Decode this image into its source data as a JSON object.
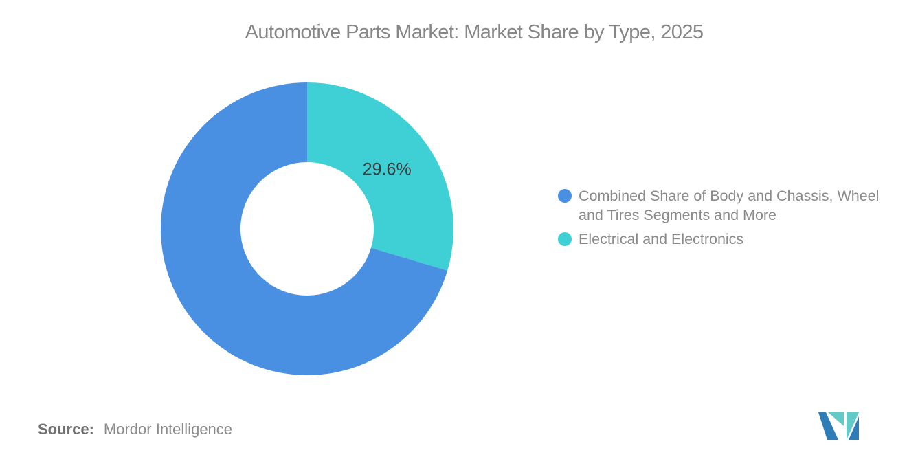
{
  "title": "Automotive Parts Market: Market Share by Type, 2025",
  "chart_data": {
    "type": "pie",
    "subtype": "donut",
    "title": "Automotive Parts Market: Market Share by Type, 2025",
    "start_at_top": "Electrical and Electronics slice begins at 12 o'clock and sweeps clockwise",
    "legend_position": "right",
    "label_color": "#3c3c3c",
    "slices": [
      {
        "label": "Combined Share of Body and Chassis, Wheel and Tires Segments and More",
        "value_pct": 70.4,
        "color": "#4a90e2",
        "data_label": ""
      },
      {
        "label": "Electrical and Electronics",
        "value_pct": 29.6,
        "color": "#3ed0d4",
        "data_label": "29.6%"
      }
    ]
  },
  "source": {
    "prefix": "Source:",
    "text": "Mordor Intelligence"
  },
  "logo": {
    "name": "mordor-intelligence-logo",
    "blue": "#2e7cb8",
    "teal": "#63cac7"
  }
}
